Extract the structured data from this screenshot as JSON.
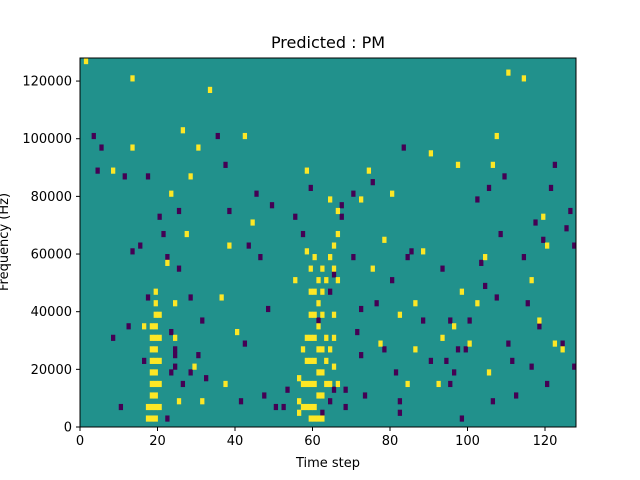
{
  "chart_data": {
    "type": "heatmap",
    "title": "Predicted : PM",
    "xlabel": "Time step",
    "ylabel": "Frequency (Hz)",
    "xlim": [
      0,
      128
    ],
    "ylim": [
      0,
      128000
    ],
    "x_ticks": [
      0,
      20,
      40,
      60,
      80,
      100,
      120
    ],
    "x_tick_labels": [
      "0",
      "20",
      "40",
      "60",
      "80",
      "100",
      "120"
    ],
    "y_ticks": [
      0,
      20000,
      40000,
      60000,
      80000,
      100000,
      120000
    ],
    "y_tick_labels": [
      "0",
      "20000",
      "40000",
      "60000",
      "80000",
      "100000",
      "120000"
    ],
    "grid": false,
    "colormap": "viridis",
    "background_value": 0,
    "value_colors": {
      "-1": "#440154",
      "0": "#21918c",
      "1": "#fde725"
    },
    "cell_width": 1,
    "cell_height": 2000,
    "high_cells": [
      [
        1,
        126000
      ],
      [
        8,
        88000
      ],
      [
        13,
        120000
      ],
      [
        13,
        96000
      ],
      [
        16,
        34000
      ],
      [
        17,
        6000
      ],
      [
        17,
        2000
      ],
      [
        18,
        34000
      ],
      [
        18,
        30000
      ],
      [
        18,
        26000
      ],
      [
        18,
        22000
      ],
      [
        18,
        18000
      ],
      [
        18,
        14000
      ],
      [
        18,
        10000
      ],
      [
        18,
        6000
      ],
      [
        18,
        2000
      ],
      [
        19,
        46000
      ],
      [
        19,
        42000
      ],
      [
        19,
        38000
      ],
      [
        19,
        34000
      ],
      [
        19,
        30000
      ],
      [
        19,
        26000
      ],
      [
        19,
        22000
      ],
      [
        19,
        18000
      ],
      [
        19,
        14000
      ],
      [
        19,
        10000
      ],
      [
        19,
        6000
      ],
      [
        19,
        2000
      ],
      [
        20,
        38000
      ],
      [
        20,
        30000
      ],
      [
        20,
        22000
      ],
      [
        20,
        14000
      ],
      [
        20,
        6000
      ],
      [
        22,
        56000
      ],
      [
        23,
        80000
      ],
      [
        24,
        42000
      ],
      [
        24,
        30000
      ],
      [
        25,
        8000
      ],
      [
        26,
        102000
      ],
      [
        27,
        66000
      ],
      [
        28,
        86000
      ],
      [
        29,
        20000
      ],
      [
        30,
        96000
      ],
      [
        31,
        8000
      ],
      [
        33,
        116000
      ],
      [
        36,
        44000
      ],
      [
        37,
        14000
      ],
      [
        38,
        62000
      ],
      [
        40,
        32000
      ],
      [
        42,
        100000
      ],
      [
        44,
        70000
      ],
      [
        55,
        50000
      ],
      [
        56,
        16000
      ],
      [
        56,
        8000
      ],
      [
        56,
        4000
      ],
      [
        57,
        26000
      ],
      [
        57,
        14000
      ],
      [
        57,
        6000
      ],
      [
        58,
        88000
      ],
      [
        58,
        60000
      ],
      [
        58,
        30000
      ],
      [
        58,
        22000
      ],
      [
        58,
        14000
      ],
      [
        58,
        6000
      ],
      [
        59,
        54000
      ],
      [
        59,
        46000
      ],
      [
        59,
        38000
      ],
      [
        59,
        30000
      ],
      [
        59,
        22000
      ],
      [
        59,
        14000
      ],
      [
        59,
        6000
      ],
      [
        59,
        2000
      ],
      [
        60,
        58000
      ],
      [
        60,
        46000
      ],
      [
        60,
        38000
      ],
      [
        60,
        30000
      ],
      [
        60,
        22000
      ],
      [
        60,
        14000
      ],
      [
        60,
        6000
      ],
      [
        60,
        2000
      ],
      [
        61,
        50000
      ],
      [
        61,
        42000
      ],
      [
        61,
        34000
      ],
      [
        61,
        26000
      ],
      [
        61,
        18000
      ],
      [
        61,
        10000
      ],
      [
        61,
        2000
      ],
      [
        62,
        54000
      ],
      [
        62,
        46000
      ],
      [
        62,
        38000
      ],
      [
        62,
        26000
      ],
      [
        62,
        18000
      ],
      [
        62,
        10000
      ],
      [
        62,
        2000
      ],
      [
        63,
        50000
      ],
      [
        63,
        30000
      ],
      [
        63,
        22000
      ],
      [
        63,
        14000
      ],
      [
        64,
        78000
      ],
      [
        64,
        58000
      ],
      [
        64,
        26000
      ],
      [
        64,
        14000
      ],
      [
        65,
        62000
      ],
      [
        65,
        54000
      ],
      [
        65,
        38000
      ],
      [
        65,
        30000
      ],
      [
        65,
        20000
      ],
      [
        66,
        74000
      ],
      [
        66,
        66000
      ],
      [
        66,
        50000
      ],
      [
        66,
        14000
      ],
      [
        72,
        78000
      ],
      [
        74,
        88000
      ],
      [
        75,
        54000
      ],
      [
        77,
        28000
      ],
      [
        78,
        64000
      ],
      [
        80,
        80000
      ],
      [
        82,
        38000
      ],
      [
        84,
        14000
      ],
      [
        86,
        42000
      ],
      [
        86,
        26000
      ],
      [
        88,
        60000
      ],
      [
        90,
        94000
      ],
      [
        92,
        14000
      ],
      [
        93,
        30000
      ],
      [
        96,
        34000
      ],
      [
        97,
        90000
      ],
      [
        98,
        46000
      ],
      [
        100,
        28000
      ],
      [
        102,
        42000
      ],
      [
        104,
        58000
      ],
      [
        105,
        18000
      ],
      [
        106,
        90000
      ],
      [
        107,
        100000
      ],
      [
        110,
        122000
      ],
      [
        114,
        120000
      ],
      [
        116,
        50000
      ],
      [
        118,
        36000
      ],
      [
        119,
        72000
      ],
      [
        120,
        62000
      ],
      [
        122,
        28000
      ],
      [
        124,
        26000
      ]
    ],
    "low_cells": [
      [
        3,
        100000
      ],
      [
        4,
        88000
      ],
      [
        5,
        96000
      ],
      [
        8,
        30000
      ],
      [
        10,
        6000
      ],
      [
        11,
        86000
      ],
      [
        12,
        34000
      ],
      [
        13,
        60000
      ],
      [
        15,
        62000
      ],
      [
        16,
        22000
      ],
      [
        17,
        86000
      ],
      [
        17,
        44000
      ],
      [
        20,
        72000
      ],
      [
        21,
        66000
      ],
      [
        22,
        58000
      ],
      [
        22,
        2000
      ],
      [
        23,
        32000
      ],
      [
        23,
        18000
      ],
      [
        24,
        26000
      ],
      [
        24,
        24000
      ],
      [
        24,
        20000
      ],
      [
        25,
        74000
      ],
      [
        25,
        54000
      ],
      [
        26,
        14000
      ],
      [
        28,
        18000
      ],
      [
        28,
        44000
      ],
      [
        30,
        24000
      ],
      [
        31,
        36000
      ],
      [
        32,
        16000
      ],
      [
        35,
        100000
      ],
      [
        37,
        90000
      ],
      [
        38,
        74000
      ],
      [
        41,
        8000
      ],
      [
        42,
        28000
      ],
      [
        43,
        62000
      ],
      [
        45,
        80000
      ],
      [
        46,
        58000
      ],
      [
        47,
        10000
      ],
      [
        48,
        40000
      ],
      [
        49,
        76000
      ],
      [
        50,
        6000
      ],
      [
        52,
        6000
      ],
      [
        53,
        12000
      ],
      [
        55,
        72000
      ],
      [
        57,
        66000
      ],
      [
        59,
        82000
      ],
      [
        61,
        36000
      ],
      [
        62,
        4000
      ],
      [
        64,
        46000
      ],
      [
        64,
        8000
      ],
      [
        65,
        52000
      ],
      [
        65,
        12000
      ],
      [
        67,
        76000
      ],
      [
        67,
        72000
      ],
      [
        68,
        6000
      ],
      [
        68,
        12000
      ],
      [
        70,
        80000
      ],
      [
        70,
        58000
      ],
      [
        71,
        32000
      ],
      [
        72,
        40000
      ],
      [
        72,
        24000
      ],
      [
        73,
        10000
      ],
      [
        75,
        84000
      ],
      [
        76,
        42000
      ],
      [
        78,
        26000
      ],
      [
        80,
        50000
      ],
      [
        81,
        18000
      ],
      [
        82,
        8000
      ],
      [
        82,
        4000
      ],
      [
        83,
        96000
      ],
      [
        84,
        58000
      ],
      [
        85,
        60000
      ],
      [
        88,
        36000
      ],
      [
        90,
        22000
      ],
      [
        93,
        54000
      ],
      [
        94,
        22000
      ],
      [
        95,
        36000
      ],
      [
        95,
        14000
      ],
      [
        96,
        18000
      ],
      [
        97,
        26000
      ],
      [
        98,
        2000
      ],
      [
        99,
        26000
      ],
      [
        100,
        36000
      ],
      [
        102,
        78000
      ],
      [
        103,
        56000
      ],
      [
        104,
        48000
      ],
      [
        105,
        82000
      ],
      [
        106,
        8000
      ],
      [
        107,
        44000
      ],
      [
        108,
        66000
      ],
      [
        109,
        86000
      ],
      [
        110,
        28000
      ],
      [
        111,
        22000
      ],
      [
        112,
        10000
      ],
      [
        114,
        58000
      ],
      [
        115,
        42000
      ],
      [
        116,
        20000
      ],
      [
        117,
        70000
      ],
      [
        118,
        34000
      ],
      [
        119,
        64000
      ],
      [
        120,
        14000
      ],
      [
        121,
        82000
      ],
      [
        122,
        90000
      ],
      [
        124,
        28000
      ],
      [
        125,
        68000
      ],
      [
        126,
        74000
      ],
      [
        127,
        62000
      ],
      [
        127,
        20000
      ]
    ]
  }
}
